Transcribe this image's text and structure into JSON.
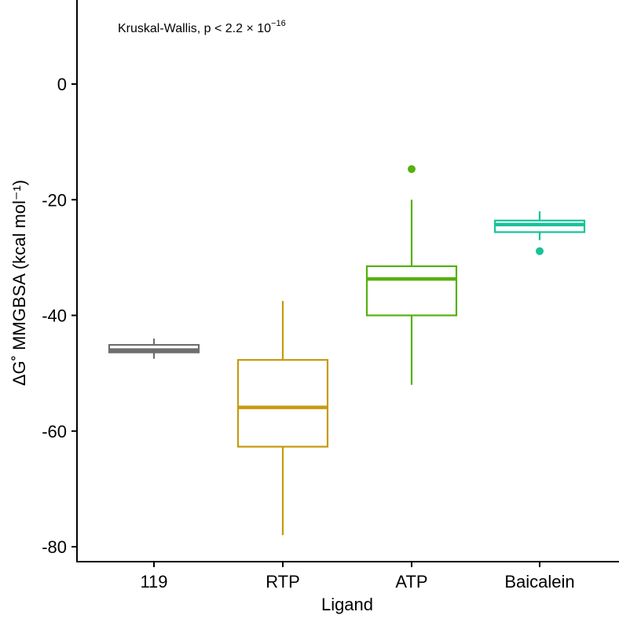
{
  "chart_data": {
    "type": "boxplot",
    "xlabel": "Ligand",
    "ylabel": "ΔG˚ MMGBSA (kcal mol⁻¹)",
    "ylim": [
      -82,
      14
    ],
    "yticks": [
      0,
      -20,
      -40,
      -60,
      -80
    ],
    "ytick_labels": [
      "0",
      "-20",
      "-40",
      "-60",
      "-80"
    ],
    "annotation": {
      "text": "Kruskal-Wallis, p < 2.2 × 10",
      "exponent": "−16"
    },
    "categories": [
      "119",
      "RTP",
      "ATP",
      "Baicalein"
    ],
    "series": [
      {
        "name": "119",
        "color": "#6e6e6e",
        "whisker_low": -47.5,
        "q1": -46.4,
        "median": -46.0,
        "q3": -45.1,
        "whisker_high": -44.0,
        "outliers": []
      },
      {
        "name": "RTP",
        "color": "#c79a0e",
        "whisker_low": -78.0,
        "q1": -62.7,
        "median": -55.9,
        "q3": -47.7,
        "whisker_high": -37.5,
        "outliers": []
      },
      {
        "name": "ATP",
        "color": "#56b010",
        "whisker_low": -52.0,
        "q1": -40.0,
        "median": -33.7,
        "q3": -31.5,
        "whisker_high": -20.0,
        "outliers": [
          -14.7
        ]
      },
      {
        "name": "Baicalein",
        "color": "#18c29a",
        "whisker_low": -27.0,
        "q1": -25.6,
        "median": -24.3,
        "q3": -23.6,
        "whisker_high": -22.0,
        "outliers": [
          -28.9
        ]
      }
    ]
  }
}
